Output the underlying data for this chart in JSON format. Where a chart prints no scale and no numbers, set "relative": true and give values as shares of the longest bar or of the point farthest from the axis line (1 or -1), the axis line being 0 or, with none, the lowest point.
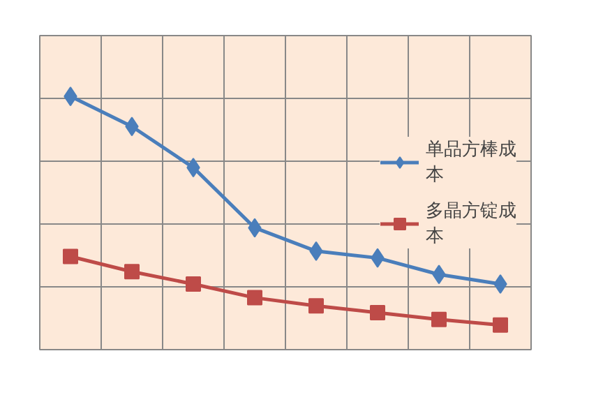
{
  "chart_data": {
    "type": "line",
    "relative": true,
    "categories": [
      null,
      null,
      null,
      null,
      null,
      null,
      null,
      null
    ],
    "series": [
      {
        "name": "单品方棒成本",
        "color": "#4a7ebb",
        "marker": "diamond",
        "values": [
          1,
          0.881,
          0.719,
          0.481,
          0.389,
          0.362,
          0.297,
          0.259
        ]
      },
      {
        "name": "多晶方锭成本",
        "color": "#be4b48",
        "marker": "square",
        "values": [
          0.368,
          0.308,
          0.259,
          0.205,
          0.173,
          0.146,
          0.119,
          0.097
        ]
      }
    ],
    "grid": true,
    "legend": "right",
    "line_style": "solid"
  }
}
